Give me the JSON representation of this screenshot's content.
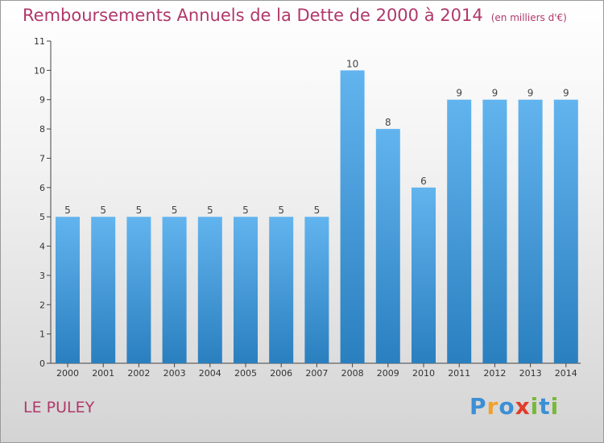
{
  "chart_data": {
    "type": "bar",
    "title": "Remboursements Annuels de la Dette de 2000 à 2014",
    "subtitle": "(en milliers d'€)",
    "xlabel": "",
    "ylabel": "",
    "categories": [
      "2000",
      "2001",
      "2002",
      "2003",
      "2004",
      "2005",
      "2006",
      "2007",
      "2008",
      "2009",
      "2010",
      "2011",
      "2012",
      "2013",
      "2014"
    ],
    "values": [
      5,
      5,
      5,
      5,
      5,
      5,
      5,
      5,
      10,
      8,
      6,
      9,
      9,
      9,
      9
    ],
    "data_labels": [
      "5",
      "5",
      "5",
      "5",
      "5",
      "5",
      "5",
      "5",
      "10",
      "8",
      "6",
      "9",
      "9",
      "9",
      "9"
    ],
    "ylim": [
      0,
      11
    ],
    "yticks": [
      0,
      1,
      2,
      3,
      4,
      5,
      6,
      7,
      8,
      9,
      10,
      11
    ],
    "grid": false,
    "legend": "none",
    "bar_color_top": "#62b4ee",
    "bar_color_bottom": "#2a7fbf"
  },
  "location": "LE PULEY",
  "logo": {
    "text": "Proxiti",
    "letters": [
      "P",
      "r",
      "o",
      "x",
      "i",
      "t",
      "i"
    ],
    "colors": [
      "#3c8fd4",
      "#f2a12d",
      "#3c8fd4",
      "#e23b2a",
      "#78b83a",
      "#3c8fd4",
      "#78b83a"
    ]
  },
  "colors": {
    "title": "#b0386a",
    "axis": "#444444"
  }
}
